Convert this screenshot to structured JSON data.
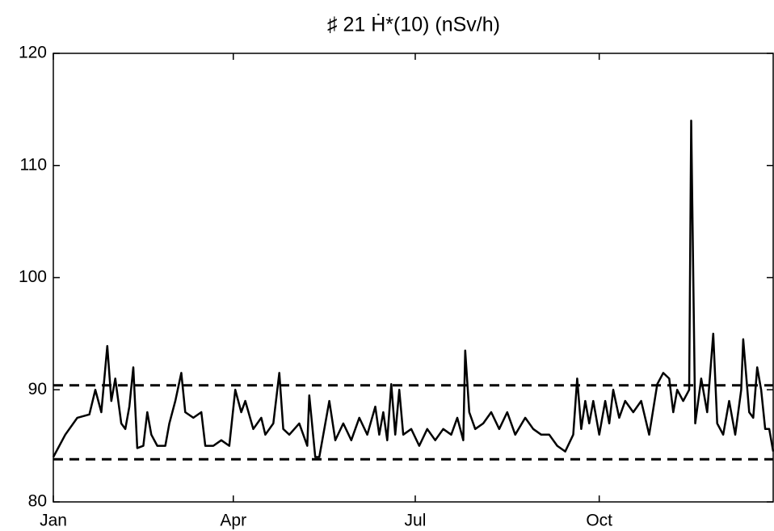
{
  "chart_data": {
    "type": "line",
    "title": "♯ 21  Ḣ*(10) (nSv/h)",
    "x": [
      0,
      6,
      12,
      18,
      21,
      24,
      27,
      29,
      31,
      34,
      36,
      38,
      40,
      42,
      45,
      47,
      49,
      52,
      56,
      58,
      61,
      64,
      66,
      70,
      74,
      76,
      80,
      84,
      88,
      91,
      94,
      96,
      100,
      104,
      106,
      110,
      113,
      115,
      118,
      123,
      127,
      128,
      131,
      133,
      138,
      141,
      145,
      149,
      153,
      157,
      161,
      163,
      165,
      167,
      169,
      171,
      173,
      175,
      179,
      183,
      187,
      191,
      195,
      199,
      202,
      205,
      206,
      208,
      211,
      215,
      219,
      223,
      227,
      231,
      236,
      240,
      244,
      248,
      252,
      256,
      260,
      262,
      264,
      266,
      268,
      270,
      273,
      276,
      278,
      280,
      283,
      286,
      290,
      294,
      298,
      302,
      305,
      308,
      310,
      312,
      315,
      318,
      319,
      321,
      324,
      327,
      330,
      332,
      335,
      338,
      341,
      344,
      345,
      348,
      350,
      352,
      354,
      356,
      358,
      360
    ],
    "series": [
      {
        "name": "Ḣ*(10)",
        "color": "#000000",
        "values": [
          84,
          86,
          87.5,
          87.8,
          90,
          88,
          93.9,
          89,
          91,
          87,
          86.5,
          88.5,
          92,
          84.8,
          85,
          88,
          86,
          85,
          85,
          87,
          89,
          91.5,
          88,
          87.5,
          88,
          85,
          85,
          85.5,
          85,
          90,
          88,
          89,
          86.5,
          87.5,
          86,
          87,
          91.5,
          86.5,
          86,
          87,
          85,
          89.5,
          84,
          84,
          89,
          85.5,
          87,
          85.5,
          87.5,
          86,
          88.5,
          86,
          88,
          85.5,
          90.5,
          86,
          90,
          86,
          86.5,
          85,
          86.5,
          85.5,
          86.5,
          86,
          87.5,
          85.5,
          93.5,
          88,
          86.5,
          87,
          88,
          86.5,
          88,
          86,
          87.5,
          86.5,
          86,
          86,
          85,
          84.5,
          86,
          91,
          86.5,
          89,
          87,
          89,
          86,
          89,
          87,
          90,
          87.5,
          89,
          88,
          89,
          86,
          90.5,
          91.5,
          91,
          88,
          90,
          89,
          90,
          114,
          87,
          91,
          88,
          95,
          87,
          86,
          89,
          86,
          90,
          94.5,
          88,
          87.5,
          92,
          90,
          86.5,
          86.5,
          84.5
        ]
      }
    ],
    "hlines": [
      90.4,
      83.8
    ],
    "xlim": [
      0,
      360
    ],
    "xticks": [
      {
        "value": 0,
        "label": "Jan"
      },
      {
        "value": 90,
        "label": "Apr"
      },
      {
        "value": 181,
        "label": "Jul"
      },
      {
        "value": 273,
        "label": "Oct"
      }
    ],
    "ylim": [
      80,
      120
    ],
    "yticks": [
      80,
      90,
      100,
      110,
      120
    ]
  }
}
